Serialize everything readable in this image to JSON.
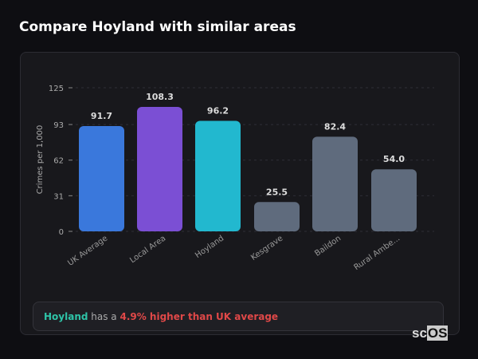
{
  "title": "Compare Hoyland with similar areas",
  "chart_data": {
    "type": "bar",
    "categories": [
      "UK Average",
      "Local Area",
      "Hoyland",
      "Kesgrave",
      "Baildon",
      "Rural Ambe..."
    ],
    "values": [
      91.7,
      108.3,
      96.2,
      25.5,
      82.4,
      54.0
    ],
    "data_labels": [
      "91.7",
      "108.3",
      "96.2",
      "25.5",
      "82.4",
      "54.0"
    ],
    "colors": [
      "#3a78dc",
      "#7b4fd4",
      "#22b8cf",
      "#5f6b7d",
      "#5f6b7d",
      "#5f6b7d"
    ],
    "ylabel": "Crimes per 1,000",
    "yticks": [
      0,
      31,
      62,
      93,
      125
    ],
    "ylim": [
      0,
      125
    ],
    "grid": true
  },
  "summary": {
    "area": "Hoyland",
    "middle": " has a ",
    "comparison": "4.9% higher than UK average"
  },
  "logo": {
    "text1": "sc",
    "text2": "OS",
    "mark": "®"
  }
}
